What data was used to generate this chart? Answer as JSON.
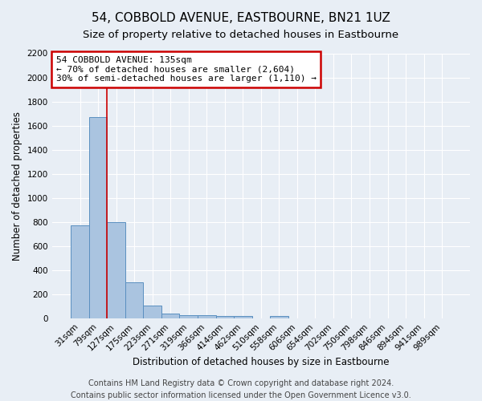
{
  "title": "54, COBBOLD AVENUE, EASTBOURNE, BN21 1UZ",
  "subtitle": "Size of property relative to detached houses in Eastbourne",
  "xlabel": "Distribution of detached houses by size in Eastbourne",
  "ylabel": "Number of detached properties",
  "footer_line1": "Contains HM Land Registry data © Crown copyright and database right 2024.",
  "footer_line2": "Contains public sector information licensed under the Open Government Licence v3.0.",
  "categories": [
    "31sqm",
    "79sqm",
    "127sqm",
    "175sqm",
    "223sqm",
    "271sqm",
    "319sqm",
    "366sqm",
    "414sqm",
    "462sqm",
    "510sqm",
    "558sqm",
    "606sqm",
    "654sqm",
    "702sqm",
    "750sqm",
    "798sqm",
    "846sqm",
    "894sqm",
    "941sqm",
    "989sqm"
  ],
  "values": [
    770,
    1670,
    800,
    300,
    110,
    40,
    30,
    25,
    20,
    20,
    0,
    20,
    0,
    0,
    0,
    0,
    0,
    0,
    0,
    0,
    0
  ],
  "ylim": [
    0,
    2200
  ],
  "yticks": [
    0,
    200,
    400,
    600,
    800,
    1000,
    1200,
    1400,
    1600,
    1800,
    2000,
    2200
  ],
  "bar_color": "#aac4e0",
  "bar_edge_color": "#5a8fc0",
  "vline_color": "#cc0000",
  "annotation_text": "54 COBBOLD AVENUE: 135sqm\n← 70% of detached houses are smaller (2,604)\n30% of semi-detached houses are larger (1,110) →",
  "annotation_box_color": "#ffffff",
  "annotation_box_edge_color": "#cc0000",
  "bg_color": "#e8eef5",
  "plot_bg_color": "#e8eef5",
  "grid_color": "#ffffff",
  "title_fontsize": 11,
  "subtitle_fontsize": 9.5,
  "axis_label_fontsize": 8.5,
  "tick_fontsize": 7.5,
  "annotation_fontsize": 8,
  "footer_fontsize": 7
}
